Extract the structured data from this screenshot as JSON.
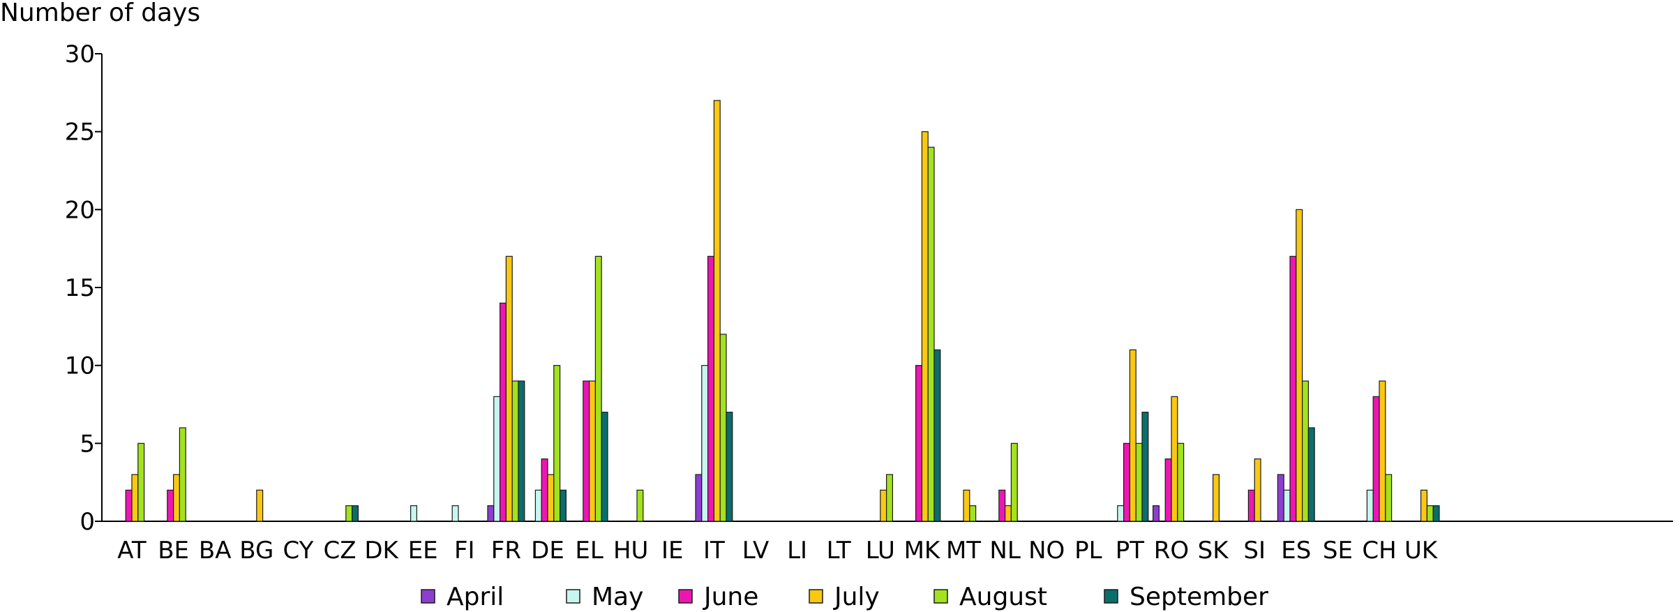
{
  "chart_data": {
    "type": "bar",
    "title": "",
    "xlabel": "",
    "ylabel": "Number of days",
    "ylim": [
      0,
      30
    ],
    "yticks": [
      0,
      5,
      10,
      15,
      20,
      25,
      30
    ],
    "grid": false,
    "legend_position": "bottom",
    "categories": [
      "AT",
      "BE",
      "BA",
      "BG",
      "CY",
      "CZ",
      "DK",
      "EE",
      "FI",
      "FR",
      "DE",
      "EL",
      "HU",
      "IE",
      "IT",
      "LV",
      "LI",
      "LT",
      "LU",
      "MK",
      "MT",
      "NL",
      "NO",
      "PL",
      "PT",
      "RO",
      "SK",
      "SI",
      "ES",
      "SE",
      "CH",
      "UK"
    ],
    "series": [
      {
        "name": "April",
        "color": "#8c3fcf",
        "values": [
          0,
          0,
          0,
          0,
          0,
          0,
          0,
          0,
          0,
          1,
          0,
          0,
          0,
          0,
          3,
          0,
          0,
          0,
          0,
          0,
          0,
          0,
          0,
          0,
          0,
          1,
          0,
          0,
          3,
          0,
          0,
          0
        ]
      },
      {
        "name": "May",
        "color": "#c6f7ee",
        "values": [
          0,
          0,
          0,
          0,
          0,
          0,
          0,
          1,
          1,
          8,
          2,
          0,
          0,
          0,
          10,
          0,
          0,
          0,
          0,
          0,
          0,
          0,
          0,
          0,
          1,
          0,
          0,
          0,
          2,
          0,
          2,
          0
        ]
      },
      {
        "name": "June",
        "color": "#ec17b3",
        "values": [
          2,
          2,
          0,
          0,
          0,
          0,
          0,
          0,
          0,
          14,
          4,
          9,
          0,
          0,
          17,
          0,
          0,
          0,
          0,
          10,
          0,
          2,
          0,
          0,
          5,
          4,
          0,
          2,
          17,
          0,
          8,
          0
        ]
      },
      {
        "name": "July",
        "color": "#f9c813",
        "values": [
          3,
          3,
          0,
          2,
          0,
          0,
          0,
          0,
          0,
          17,
          3,
          9,
          0,
          0,
          27,
          0,
          0,
          0,
          2,
          25,
          2,
          1,
          0,
          0,
          11,
          8,
          3,
          4,
          20,
          0,
          9,
          2
        ]
      },
      {
        "name": "August",
        "color": "#a3e21f",
        "values": [
          5,
          6,
          0,
          0,
          0,
          1,
          0,
          0,
          0,
          9,
          10,
          17,
          2,
          0,
          12,
          0,
          0,
          0,
          3,
          24,
          1,
          5,
          0,
          0,
          5,
          5,
          0,
          0,
          9,
          0,
          3,
          1
        ]
      },
      {
        "name": "September",
        "color": "#0a6e6c",
        "values": [
          0,
          0,
          0,
          0,
          0,
          1,
          0,
          0,
          0,
          9,
          2,
          7,
          0,
          0,
          7,
          0,
          0,
          0,
          0,
          11,
          0,
          0,
          0,
          0,
          7,
          0,
          0,
          0,
          6,
          0,
          0,
          1
        ]
      }
    ]
  }
}
